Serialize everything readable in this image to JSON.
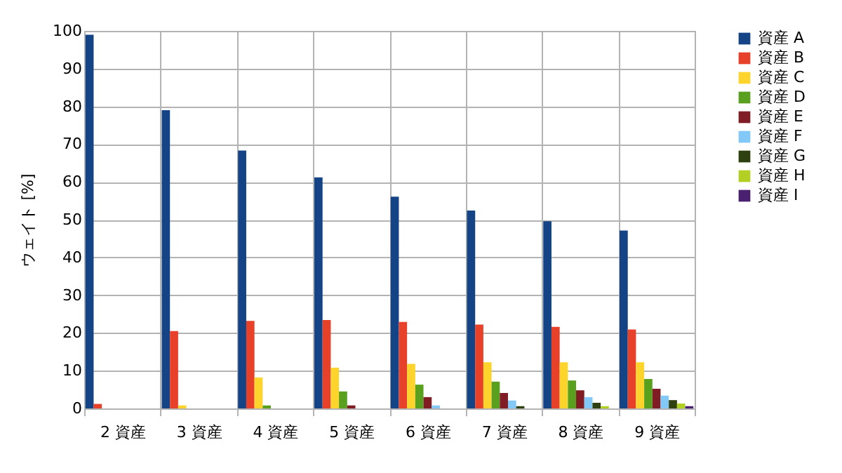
{
  "chart_data": {
    "type": "bar",
    "ylabel": "ウェイト [%]",
    "categories": [
      "2 資産",
      "3 資産",
      "4 資産",
      "5 資産",
      "6 資産",
      "7 資産",
      "8 資産",
      "9 資産"
    ],
    "series": [
      {
        "name": "資産 A",
        "color": "#144485",
        "values": [
          99,
          79,
          68.3,
          61.2,
          56.1,
          52.4,
          49.6,
          47.1
        ]
      },
      {
        "name": "資産 B",
        "color": "#e8412a",
        "values": [
          1.2,
          20.5,
          23.2,
          23.4,
          22.9,
          22.2,
          21.6,
          20.9
        ]
      },
      {
        "name": "資産 C",
        "color": "#fdd42c",
        "values": [
          null,
          0.8,
          8.2,
          10.8,
          11.8,
          12.2,
          12.2,
          12.2
        ]
      },
      {
        "name": "資産 D",
        "color": "#58a01e",
        "values": [
          null,
          null,
          0.8,
          4.5,
          6.3,
          7.1,
          7.4,
          7.8
        ]
      },
      {
        "name": "資産 E",
        "color": "#7f1c24",
        "values": [
          null,
          null,
          null,
          0.8,
          3,
          4.1,
          4.8,
          5.2
        ]
      },
      {
        "name": "資産 F",
        "color": "#83c9f7",
        "values": [
          null,
          null,
          null,
          null,
          0.8,
          2.1,
          3,
          3.4
        ]
      },
      {
        "name": "資産 G",
        "color": "#2f4010",
        "values": [
          null,
          null,
          null,
          null,
          null,
          0.6,
          1.5,
          2.2
        ]
      },
      {
        "name": "資産 H",
        "color": "#b2d023",
        "values": [
          null,
          null,
          null,
          null,
          null,
          null,
          0.6,
          1.3
        ]
      },
      {
        "name": "資産 I",
        "color": "#4a2070",
        "values": [
          null,
          null,
          null,
          null,
          null,
          null,
          null,
          0.6
        ]
      }
    ],
    "ylim": [
      0,
      100
    ],
    "yticks": [
      0,
      10,
      20,
      30,
      40,
      50,
      60,
      70,
      80,
      90,
      100
    ],
    "grid": true,
    "legend": "right"
  }
}
